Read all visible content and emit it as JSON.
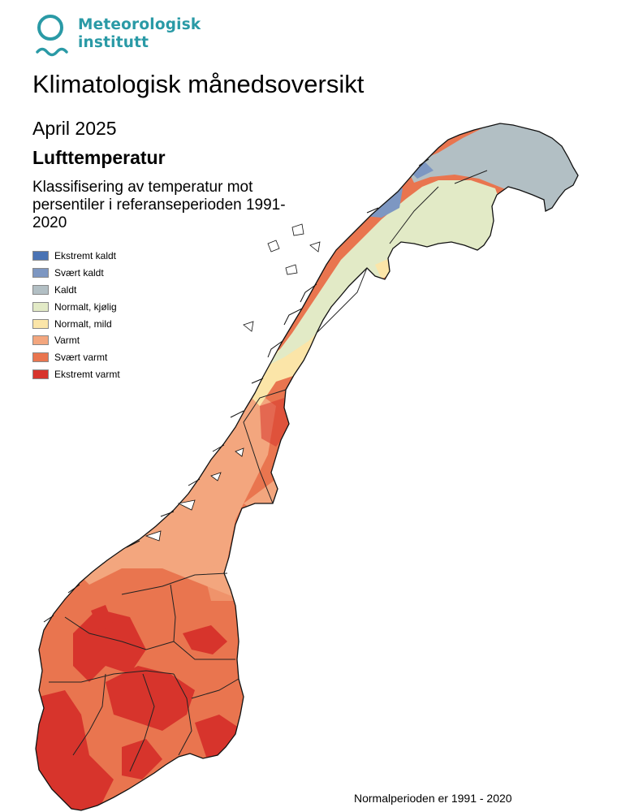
{
  "logo": {
    "line1": "Meteorologisk",
    "line2": "institutt",
    "color": "#2a9aa6"
  },
  "title": "Klimatologisk månedsoversikt",
  "period": "April 2025",
  "variable": "Lufttemperatur",
  "description": "Klassifisering av temperatur mot persentiler i referanseperioden 1991-2020",
  "legend": [
    {
      "label": "Ekstremt kaldt",
      "color": "#4a73b4"
    },
    {
      "label": "Svært kaldt",
      "color": "#7d97c2"
    },
    {
      "label": "Kaldt",
      "color": "#b2bfc4"
    },
    {
      "label": "Normalt, kjølig",
      "color": "#e2eac6"
    },
    {
      "label": "Normalt, mild",
      "color": "#fbe5a8"
    },
    {
      "label": "Varmt",
      "color": "#f3a67e"
    },
    {
      "label": "Svært varmt",
      "color": "#e9754f"
    },
    {
      "label": "Ekstremt varmt",
      "color": "#d7342c"
    }
  ],
  "footnote": "Normalperioden er 1991 - 2020"
}
